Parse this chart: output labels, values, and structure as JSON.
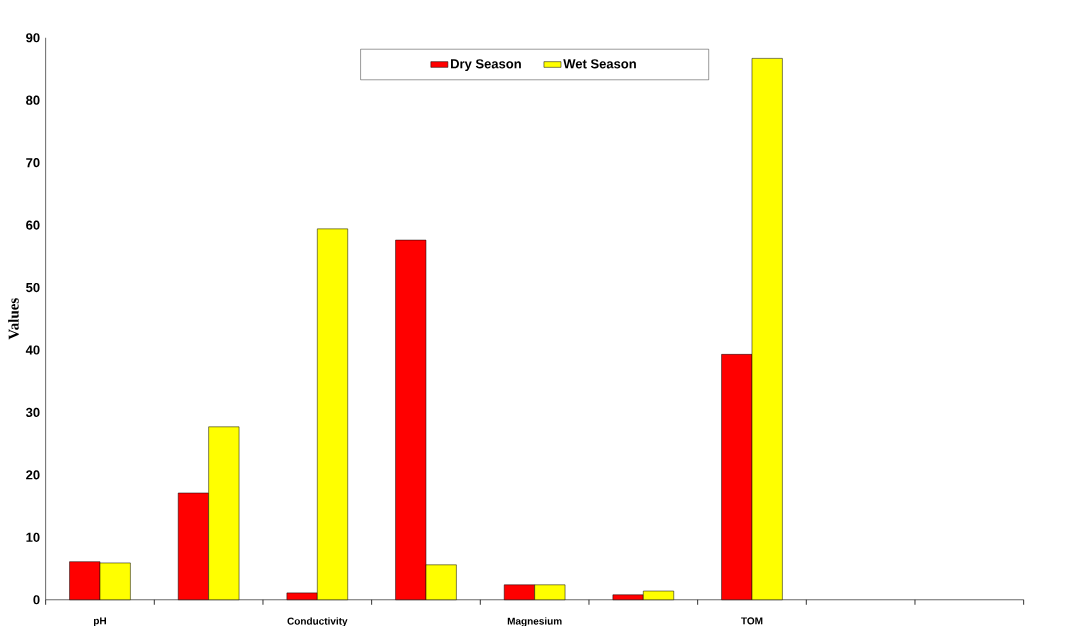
{
  "chart_data": {
    "type": "bar",
    "ylabel": "Values",
    "categories": [
      "pH",
      null,
      "Conductivity",
      null,
      "Magnesium",
      null,
      "TOM",
      null,
      null
    ],
    "series": [
      {
        "name": "Dry Season",
        "color": "#ff0000",
        "values": [
          6.1,
          17.1,
          1.1,
          57.6,
          2.4,
          0.8,
          39.3,
          null,
          null
        ]
      },
      {
        "name": "Wet Season",
        "color": "#ffff00",
        "values": [
          5.9,
          27.7,
          59.4,
          5.6,
          2.4,
          1.4,
          86.7,
          null,
          null
        ]
      }
    ],
    "ylim": [
      0,
      90
    ],
    "yticks": [
      0,
      10,
      20,
      30,
      40,
      50,
      60,
      70,
      80,
      90
    ],
    "legend": "top",
    "grid": false
  }
}
